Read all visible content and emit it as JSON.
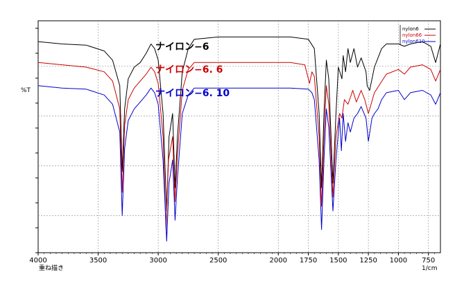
{
  "chart_data": {
    "type": "line",
    "title": "",
    "xlabel_unit": "1/cm",
    "ylabel": "%T",
    "footer_label": "重ね描き",
    "xlim": [
      4000,
      650
    ],
    "x_ticks": [
      4000,
      3500,
      3000,
      2500,
      2000,
      1750,
      1500,
      1250,
      1000,
      750
    ],
    "x_tick_labels": [
      "4000",
      "3500",
      "3000",
      "2500",
      "2000",
      "1750",
      "1500",
      "1250",
      "1000",
      "750"
    ],
    "grid": true,
    "legend_position": "top-right",
    "annotations": [
      {
        "text": "ナイロン−6",
        "series": "nylon6"
      },
      {
        "text": "ナイロン−6. 6",
        "series": "nylon66"
      },
      {
        "text": "ナイロン−6. 10",
        "series": "nylon610"
      }
    ],
    "series": [
      {
        "name": "nylon6",
        "color": "#000000",
        "points": [
          [
            4000,
            91
          ],
          [
            3800,
            90
          ],
          [
            3600,
            89.5
          ],
          [
            3450,
            87
          ],
          [
            3380,
            83
          ],
          [
            3320,
            72
          ],
          [
            3300,
            35
          ],
          [
            3280,
            62
          ],
          [
            3250,
            75
          ],
          [
            3200,
            80
          ],
          [
            3150,
            82
          ],
          [
            3100,
            86
          ],
          [
            3060,
            90
          ],
          [
            3030,
            88
          ],
          [
            3000,
            83
          ],
          [
            2960,
            60
          ],
          [
            2930,
            18
          ],
          [
            2910,
            50
          ],
          [
            2880,
            60
          ],
          [
            2860,
            28
          ],
          [
            2840,
            50
          ],
          [
            2800,
            78
          ],
          [
            2750,
            88
          ],
          [
            2700,
            92
          ],
          [
            2500,
            93
          ],
          [
            2300,
            93
          ],
          [
            2100,
            93
          ],
          [
            1900,
            93
          ],
          [
            1750,
            92
          ],
          [
            1700,
            88
          ],
          [
            1660,
            60
          ],
          [
            1640,
            28
          ],
          [
            1620,
            60
          ],
          [
            1600,
            83
          ],
          [
            1580,
            75
          ],
          [
            1545,
            30
          ],
          [
            1520,
            60
          ],
          [
            1500,
            80
          ],
          [
            1470,
            75
          ],
          [
            1460,
            85
          ],
          [
            1440,
            78
          ],
          [
            1420,
            88
          ],
          [
            1400,
            82
          ],
          [
            1370,
            88
          ],
          [
            1340,
            80
          ],
          [
            1310,
            84
          ],
          [
            1270,
            78
          ],
          [
            1260,
            72
          ],
          [
            1240,
            70
          ],
          [
            1200,
            80
          ],
          [
            1170,
            84
          ],
          [
            1140,
            88
          ],
          [
            1100,
            90
          ],
          [
            1000,
            90
          ],
          [
            950,
            89
          ],
          [
            900,
            90
          ],
          [
            800,
            91
          ],
          [
            730,
            89
          ],
          [
            690,
            82
          ],
          [
            650,
            90
          ]
        ]
      },
      {
        "name": "nylon66",
        "color": "#cc0000",
        "points": [
          [
            4000,
            82
          ],
          [
            3800,
            81
          ],
          [
            3600,
            80
          ],
          [
            3450,
            78
          ],
          [
            3380,
            74
          ],
          [
            3320,
            62
          ],
          [
            3300,
            26
          ],
          [
            3280,
            55
          ],
          [
            3250,
            66
          ],
          [
            3200,
            71
          ],
          [
            3150,
            74
          ],
          [
            3100,
            77
          ],
          [
            3060,
            80
          ],
          [
            3030,
            78
          ],
          [
            3000,
            73
          ],
          [
            2960,
            50
          ],
          [
            2935,
            10
          ],
          [
            2915,
            40
          ],
          [
            2880,
            50
          ],
          [
            2860,
            22
          ],
          [
            2840,
            42
          ],
          [
            2800,
            70
          ],
          [
            2750,
            79
          ],
          [
            2700,
            82
          ],
          [
            2500,
            82
          ],
          [
            2300,
            82
          ],
          [
            2100,
            82
          ],
          [
            1900,
            82
          ],
          [
            1780,
            81
          ],
          [
            1740,
            73
          ],
          [
            1720,
            78
          ],
          [
            1700,
            76
          ],
          [
            1660,
            50
          ],
          [
            1640,
            20
          ],
          [
            1620,
            50
          ],
          [
            1600,
            72
          ],
          [
            1580,
            64
          ],
          [
            1545,
            24
          ],
          [
            1520,
            50
          ],
          [
            1490,
            60
          ],
          [
            1470,
            58
          ],
          [
            1450,
            66
          ],
          [
            1420,
            64
          ],
          [
            1380,
            70
          ],
          [
            1350,
            65
          ],
          [
            1310,
            70
          ],
          [
            1280,
            66
          ],
          [
            1250,
            60
          ],
          [
            1200,
            69
          ],
          [
            1150,
            73
          ],
          [
            1100,
            77
          ],
          [
            1000,
            79
          ],
          [
            950,
            77
          ],
          [
            900,
            80
          ],
          [
            800,
            81
          ],
          [
            730,
            79
          ],
          [
            690,
            74
          ],
          [
            650,
            79
          ]
        ]
      },
      {
        "name": "nylon610",
        "color": "#0000cc",
        "points": [
          [
            4000,
            72
          ],
          [
            3800,
            71
          ],
          [
            3600,
            70.5
          ],
          [
            3450,
            68
          ],
          [
            3380,
            64
          ],
          [
            3320,
            52
          ],
          [
            3300,
            16
          ],
          [
            3280,
            45
          ],
          [
            3250,
            57
          ],
          [
            3200,
            62
          ],
          [
            3150,
            65
          ],
          [
            3100,
            68
          ],
          [
            3060,
            71
          ],
          [
            3030,
            69
          ],
          [
            3000,
            64
          ],
          [
            2960,
            40
          ],
          [
            2930,
            5
          ],
          [
            2910,
            30
          ],
          [
            2880,
            40
          ],
          [
            2860,
            14
          ],
          [
            2840,
            32
          ],
          [
            2800,
            60
          ],
          [
            2750,
            68
          ],
          [
            2700,
            71
          ],
          [
            2500,
            71
          ],
          [
            2300,
            71
          ],
          [
            2100,
            71
          ],
          [
            1900,
            71
          ],
          [
            1750,
            70.5
          ],
          [
            1720,
            69
          ],
          [
            1700,
            66
          ],
          [
            1660,
            40
          ],
          [
            1640,
            10
          ],
          [
            1620,
            40
          ],
          [
            1600,
            62
          ],
          [
            1580,
            54
          ],
          [
            1545,
            18
          ],
          [
            1520,
            40
          ],
          [
            1490,
            58
          ],
          [
            1475,
            44
          ],
          [
            1460,
            60
          ],
          [
            1440,
            48
          ],
          [
            1420,
            56
          ],
          [
            1400,
            52
          ],
          [
            1370,
            58
          ],
          [
            1340,
            60
          ],
          [
            1310,
            63
          ],
          [
            1270,
            58
          ],
          [
            1250,
            48
          ],
          [
            1220,
            58
          ],
          [
            1200,
            60
          ],
          [
            1170,
            62
          ],
          [
            1140,
            66
          ],
          [
            1100,
            69
          ],
          [
            1000,
            70
          ],
          [
            950,
            66
          ],
          [
            900,
            69
          ],
          [
            800,
            70
          ],
          [
            730,
            68
          ],
          [
            690,
            64
          ],
          [
            650,
            69
          ]
        ]
      }
    ]
  }
}
